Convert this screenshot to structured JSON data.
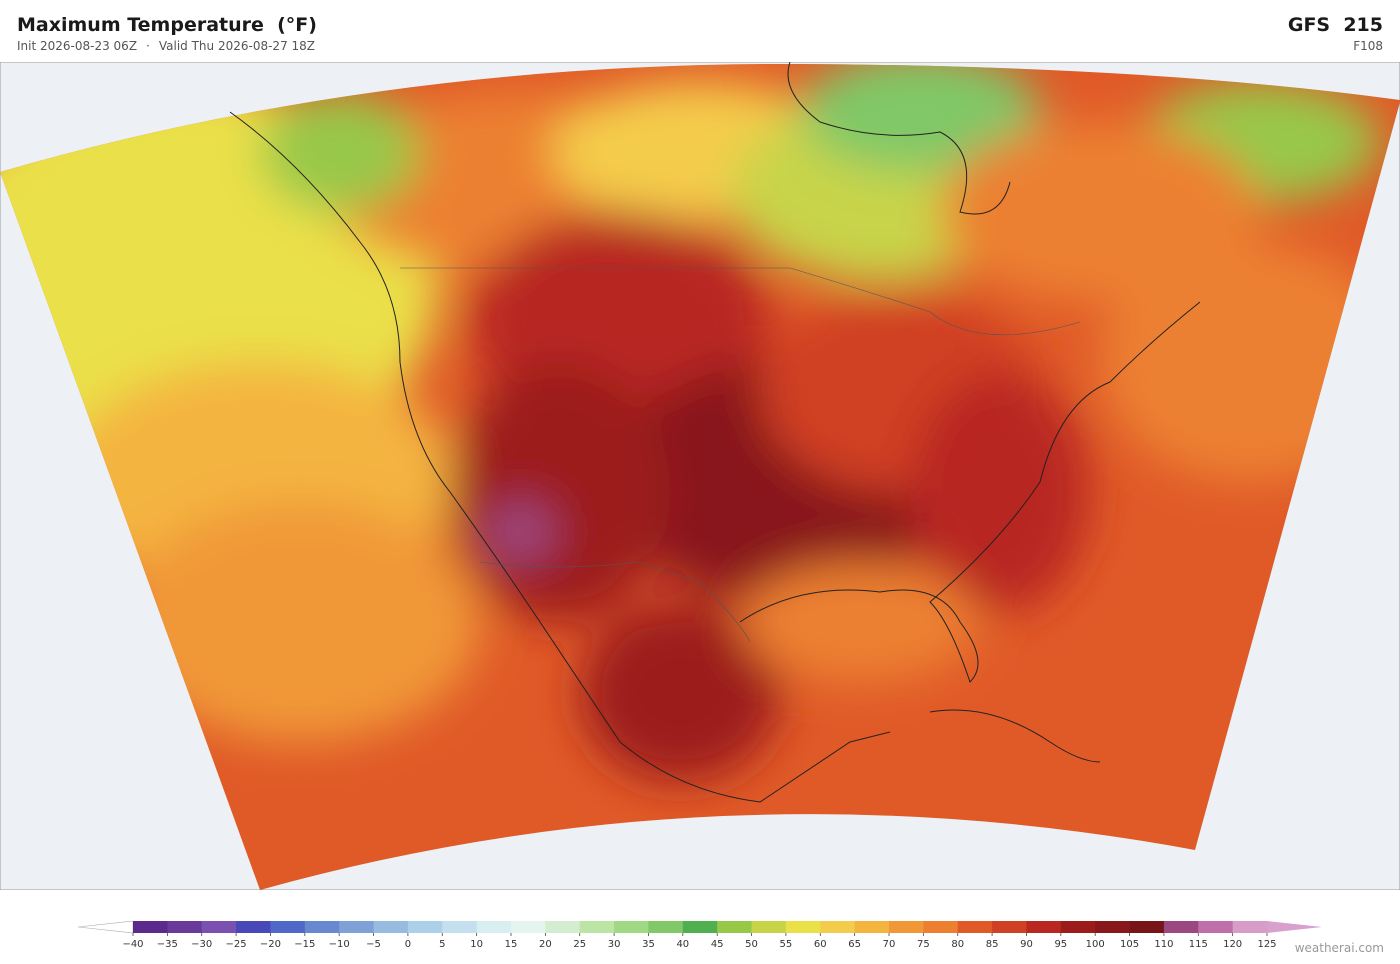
{
  "header": {
    "title": "Maximum Temperature  (°F)",
    "init": "Init 2026-08-23 06Z",
    "separator": "·",
    "valid": "Valid Thu 2026-08-27 18Z",
    "model": "GFS  215",
    "forecast_hour": "F108"
  },
  "colorbar": {
    "ticks": [
      {
        "value": -40,
        "label": "−40"
      },
      {
        "value": -35,
        "label": "−35"
      },
      {
        "value": -30,
        "label": "−30"
      },
      {
        "value": -25,
        "label": "−25"
      },
      {
        "value": -20,
        "label": "−20"
      },
      {
        "value": -15,
        "label": "−15"
      },
      {
        "value": -10,
        "label": "−10"
      },
      {
        "value": -5,
        "label": "−5"
      },
      0,
      5,
      10,
      15,
      20,
      25,
      30,
      35,
      40,
      45,
      50,
      55,
      60,
      65,
      70,
      75,
      80,
      85,
      90,
      95,
      100,
      105,
      110,
      115,
      120,
      125
    ],
    "colors": [
      "#5b2a8c",
      "#6a3a9a",
      "#7a50b0",
      "#4848b8",
      "#5068c8",
      "#6888d0",
      "#80a0d8",
      "#98bce0",
      "#acd0e8",
      "#c4e0ee",
      "#d8eef0",
      "#e4f4ee",
      "#d4ecd0",
      "#bce4a4",
      "#a0d884",
      "#80c868",
      "#50b050",
      "#98c848",
      "#c8d448",
      "#eae048",
      "#f4cc4c",
      "#f4b440",
      "#f09838",
      "#ec8030",
      "#e05a28",
      "#d04024",
      "#b82820",
      "#9c1c1c",
      "#88181a",
      "#781418",
      "#9c4880",
      "#c070a8",
      "#d89cc8"
    ],
    "under_color": "#ffffff",
    "over_color": "#d8a0cc"
  },
  "credit": "weatherai.com"
}
